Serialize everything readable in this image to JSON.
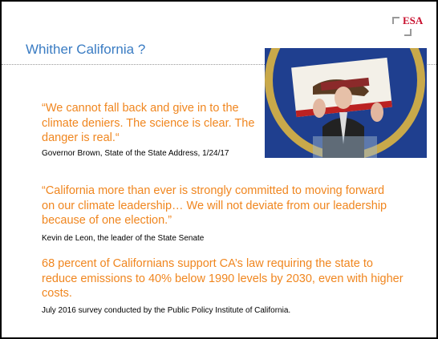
{
  "header": {
    "title": "Whither California ?",
    "logo": "ESA"
  },
  "quotes": [
    {
      "text": "“We cannot fall back and give in to the climate deniers. The science is clear. The danger is real.“",
      "source": "Governor Brown, State of the State Address, 1/24/17"
    },
    {
      "text": "“California more than ever is strongly committed to moving forward on our climate leadership… We will not deviate from our leadership because of one election.”",
      "source": "Kevin de Leon, the leader of the State Senate"
    },
    {
      "text": "68 percent of Californians support CA’s law requiring the state to reduce emissions to 40% below 1990 levels by 2030, even with higher costs.",
      "source": "July 2016 survey conducted by the Public Policy Institute of California."
    }
  ]
}
